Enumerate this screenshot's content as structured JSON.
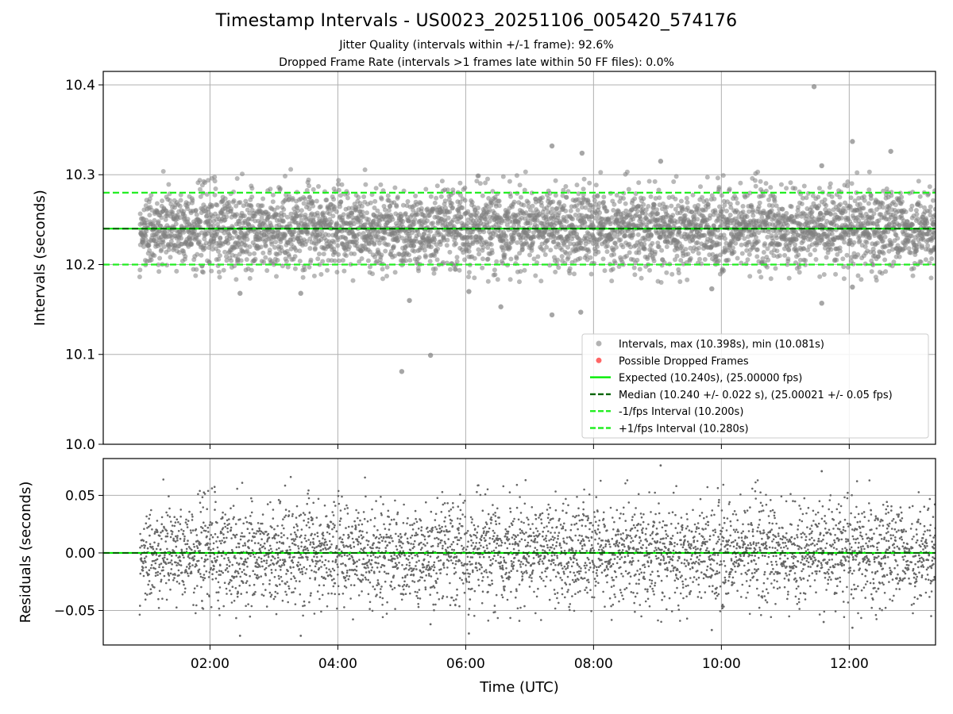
{
  "page": {
    "title": "Timestamp Intervals - US0023_20251106_005420_574176",
    "subtitle1": "Jitter Quality (intervals within +/-1 frame): 92.6%",
    "subtitle2": "Dropped Frame Rate (intervals >1 frames late within 50 FF files): 0.0%"
  },
  "colors": {
    "points": "#808080",
    "residual_points": "#666666",
    "expected": "#00ee00",
    "median": "#006400",
    "bounds": "#22ee22",
    "dropped": "#ff5555",
    "grid": "#b0b0b0"
  },
  "chart_data": [
    {
      "type": "scatter",
      "panel": "intervals",
      "ylabel": "Intervals (seconds)",
      "xlim": [
        0.33,
        13.35
      ],
      "ylim": [
        10.0,
        10.415
      ],
      "yticks": [
        10.0,
        10.1,
        10.2,
        10.3,
        10.4
      ],
      "ytick_labels": [
        "10.0",
        "10.1",
        "10.2",
        "10.3",
        "10.4"
      ],
      "xticks": [
        2,
        4,
        6,
        8,
        10,
        12
      ],
      "grid": true,
      "expected": 10.24,
      "median": 10.24,
      "lower_bound": 10.2,
      "upper_bound": 10.28,
      "point_count_estimate": 4200,
      "x_range": [
        0.9,
        13.35
      ],
      "outliers": [
        {
          "x": 11.45,
          "y": 10.398
        },
        {
          "x": 5.0,
          "y": 10.081
        },
        {
          "x": 5.45,
          "y": 10.099
        },
        {
          "x": 7.35,
          "y": 10.332
        },
        {
          "x": 7.82,
          "y": 10.324
        },
        {
          "x": 12.05,
          "y": 10.337
        },
        {
          "x": 12.65,
          "y": 10.326
        },
        {
          "x": 9.05,
          "y": 10.315
        },
        {
          "x": 11.57,
          "y": 10.31
        },
        {
          "x": 6.55,
          "y": 10.153
        },
        {
          "x": 7.35,
          "y": 10.144
        },
        {
          "x": 7.8,
          "y": 10.147
        },
        {
          "x": 11.57,
          "y": 10.157
        },
        {
          "x": 5.12,
          "y": 10.16
        },
        {
          "x": 3.42,
          "y": 10.168
        },
        {
          "x": 2.47,
          "y": 10.168
        },
        {
          "x": 12.05,
          "y": 10.175
        },
        {
          "x": 6.05,
          "y": 10.17
        },
        {
          "x": 9.85,
          "y": 10.173
        }
      ],
      "legend": {
        "placement": "lower-right",
        "entries": [
          {
            "label": "Intervals, max (10.398s), min (10.081s)",
            "kind": "dot",
            "color": "#a0a0a0"
          },
          {
            "label": "Possible Dropped Frames",
            "kind": "dot",
            "color": "#ff5555"
          },
          {
            "label": "Expected (10.240s), (25.00000 fps)",
            "kind": "solid",
            "color": "#00ee00"
          },
          {
            "label": "Median (10.240 +/- 0.022 s), (25.00021 +/- 0.05 fps)",
            "kind": "dashed",
            "color": "#006400"
          },
          {
            "label": "-1/fps Interval (10.200s)",
            "kind": "dashed",
            "color": "#22ee22"
          },
          {
            "label": "+1/fps Interval (10.280s)",
            "kind": "dashed",
            "color": "#22ee22"
          }
        ]
      }
    },
    {
      "type": "scatter",
      "panel": "residuals",
      "ylabel": "Residuals (seconds)",
      "xlabel": "Time (UTC)",
      "xlim": [
        0.33,
        13.35
      ],
      "ylim": [
        -0.08,
        0.082
      ],
      "yticks": [
        0.05,
        0.0,
        -0.05
      ],
      "ytick_labels": [
        "0.05",
        "0.00",
        "−0.05"
      ],
      "xticks": [
        2,
        4,
        6,
        8,
        10,
        12
      ],
      "xtick_labels": [
        "02:00",
        "04:00",
        "06:00",
        "08:00",
        "10:00",
        "12:00"
      ],
      "grid": true,
      "zero_line": 0.0,
      "outliers": [
        {
          "x": 9.05,
          "y": 0.076
        },
        {
          "x": 11.57,
          "y": 0.071
        },
        {
          "x": 5.0,
          "y": -0.083
        },
        {
          "x": 6.05,
          "y": -0.07
        },
        {
          "x": 3.42,
          "y": -0.072
        },
        {
          "x": 2.47,
          "y": -0.072
        },
        {
          "x": 9.85,
          "y": -0.067
        },
        {
          "x": 12.05,
          "y": -0.065
        },
        {
          "x": 5.45,
          "y": -0.062
        },
        {
          "x": 11.6,
          "y": -0.06
        }
      ]
    }
  ]
}
